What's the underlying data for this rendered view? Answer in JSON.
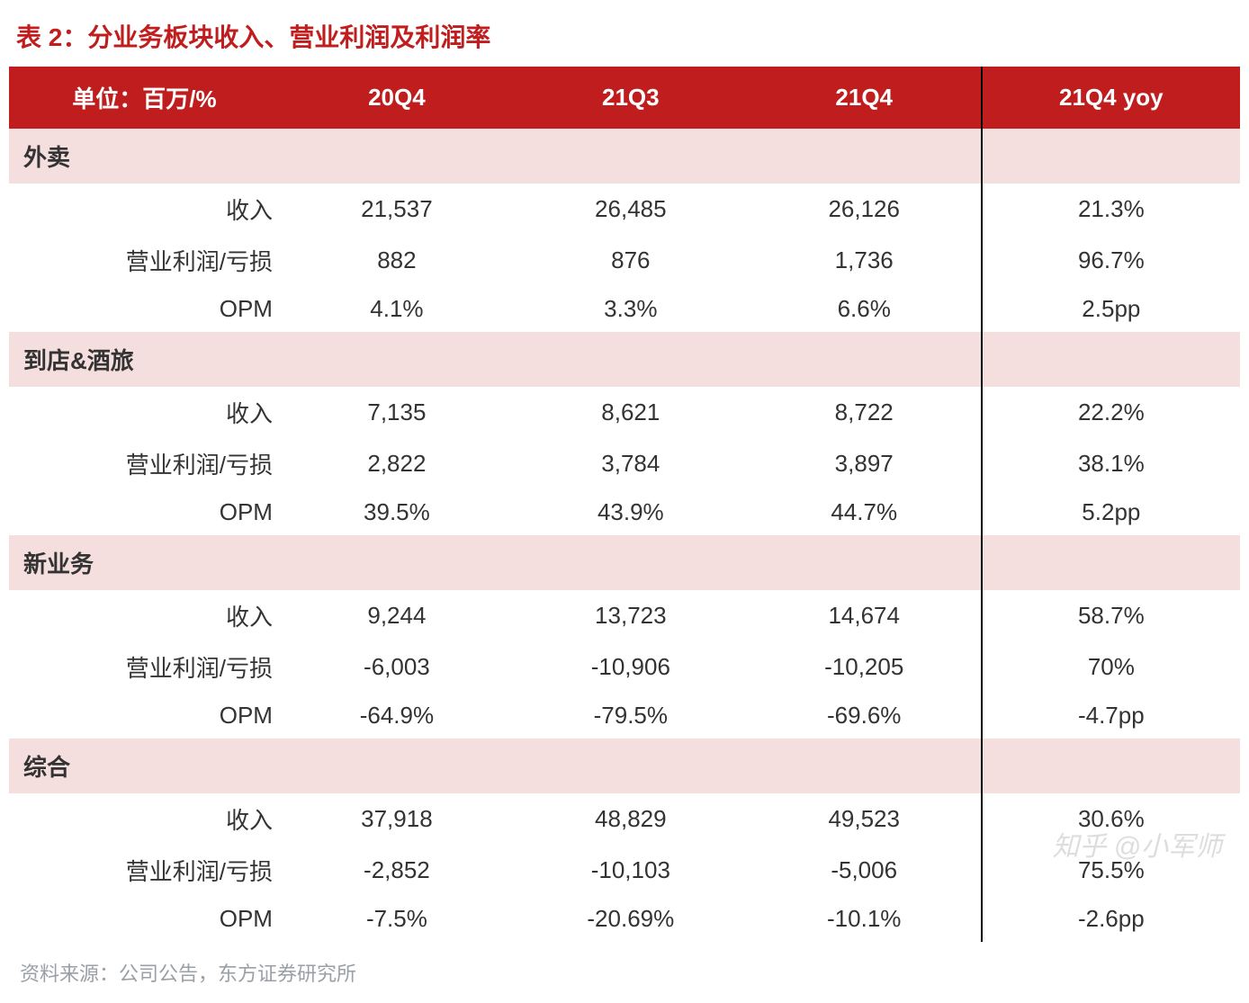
{
  "title": "表 2：分业务板块收入、营业利润及利润率",
  "columns": {
    "unit": "单位：百万/%",
    "c1": "20Q4",
    "c2": "21Q3",
    "c3": "21Q4",
    "yoy": "21Q4 yoy"
  },
  "sections": [
    {
      "name": "外卖",
      "rows": [
        {
          "label": "收入",
          "c1": "21,537",
          "c2": "26,485",
          "c3": "26,126",
          "yoy": "21.3%"
        },
        {
          "label": "营业利润/亏损",
          "c1": "882",
          "c2": "876",
          "c3": "1,736",
          "yoy": "96.7%"
        },
        {
          "label": "OPM",
          "c1": "4.1%",
          "c2": "3.3%",
          "c3": "6.6%",
          "yoy": "2.5pp"
        }
      ]
    },
    {
      "name": "到店&酒旅",
      "rows": [
        {
          "label": "收入",
          "c1": "7,135",
          "c2": "8,621",
          "c3": "8,722",
          "yoy": "22.2%"
        },
        {
          "label": "营业利润/亏损",
          "c1": "2,822",
          "c2": "3,784",
          "c3": "3,897",
          "yoy": "38.1%"
        },
        {
          "label": "OPM",
          "c1": "39.5%",
          "c2": "43.9%",
          "c3": "44.7%",
          "yoy": "5.2pp"
        }
      ]
    },
    {
      "name": "新业务",
      "rows": [
        {
          "label": "收入",
          "c1": "9,244",
          "c2": "13,723",
          "c3": "14,674",
          "yoy": "58.7%"
        },
        {
          "label": "营业利润/亏损",
          "c1": "-6,003",
          "c2": "-10,906",
          "c3": "-10,205",
          "yoy": "70%"
        },
        {
          "label": "OPM",
          "c1": "-64.9%",
          "c2": "-79.5%",
          "c3": "-69.6%",
          "yoy": "-4.7pp"
        }
      ]
    },
    {
      "name": "综合",
      "rows": [
        {
          "label": "收入",
          "c1": "37,918",
          "c2": "48,829",
          "c3": "49,523",
          "yoy": "30.6%"
        },
        {
          "label": "营业利润/亏损",
          "c1": "-2,852",
          "c2": "-10,103",
          "c3": "-5,006",
          "yoy": "75.5%"
        },
        {
          "label": "OPM",
          "c1": "-7.5%",
          "c2": "-20.69%",
          "c3": "-10.1%",
          "yoy": "-2.6pp"
        }
      ]
    }
  ],
  "footer": "资料来源：公司公告，东方证券研究所",
  "watermark": "知乎 @小军师",
  "style": {
    "header_bg": "#c01e1e",
    "header_text": "#ffffff",
    "section_bg": "#f4dede",
    "text_color": "#333333",
    "title_color": "#c01e1e",
    "footer_color": "#9aa0a6",
    "separator_color": "#000000",
    "font_size_title": 28,
    "font_size_cell": 26,
    "font_size_footer": 22
  }
}
